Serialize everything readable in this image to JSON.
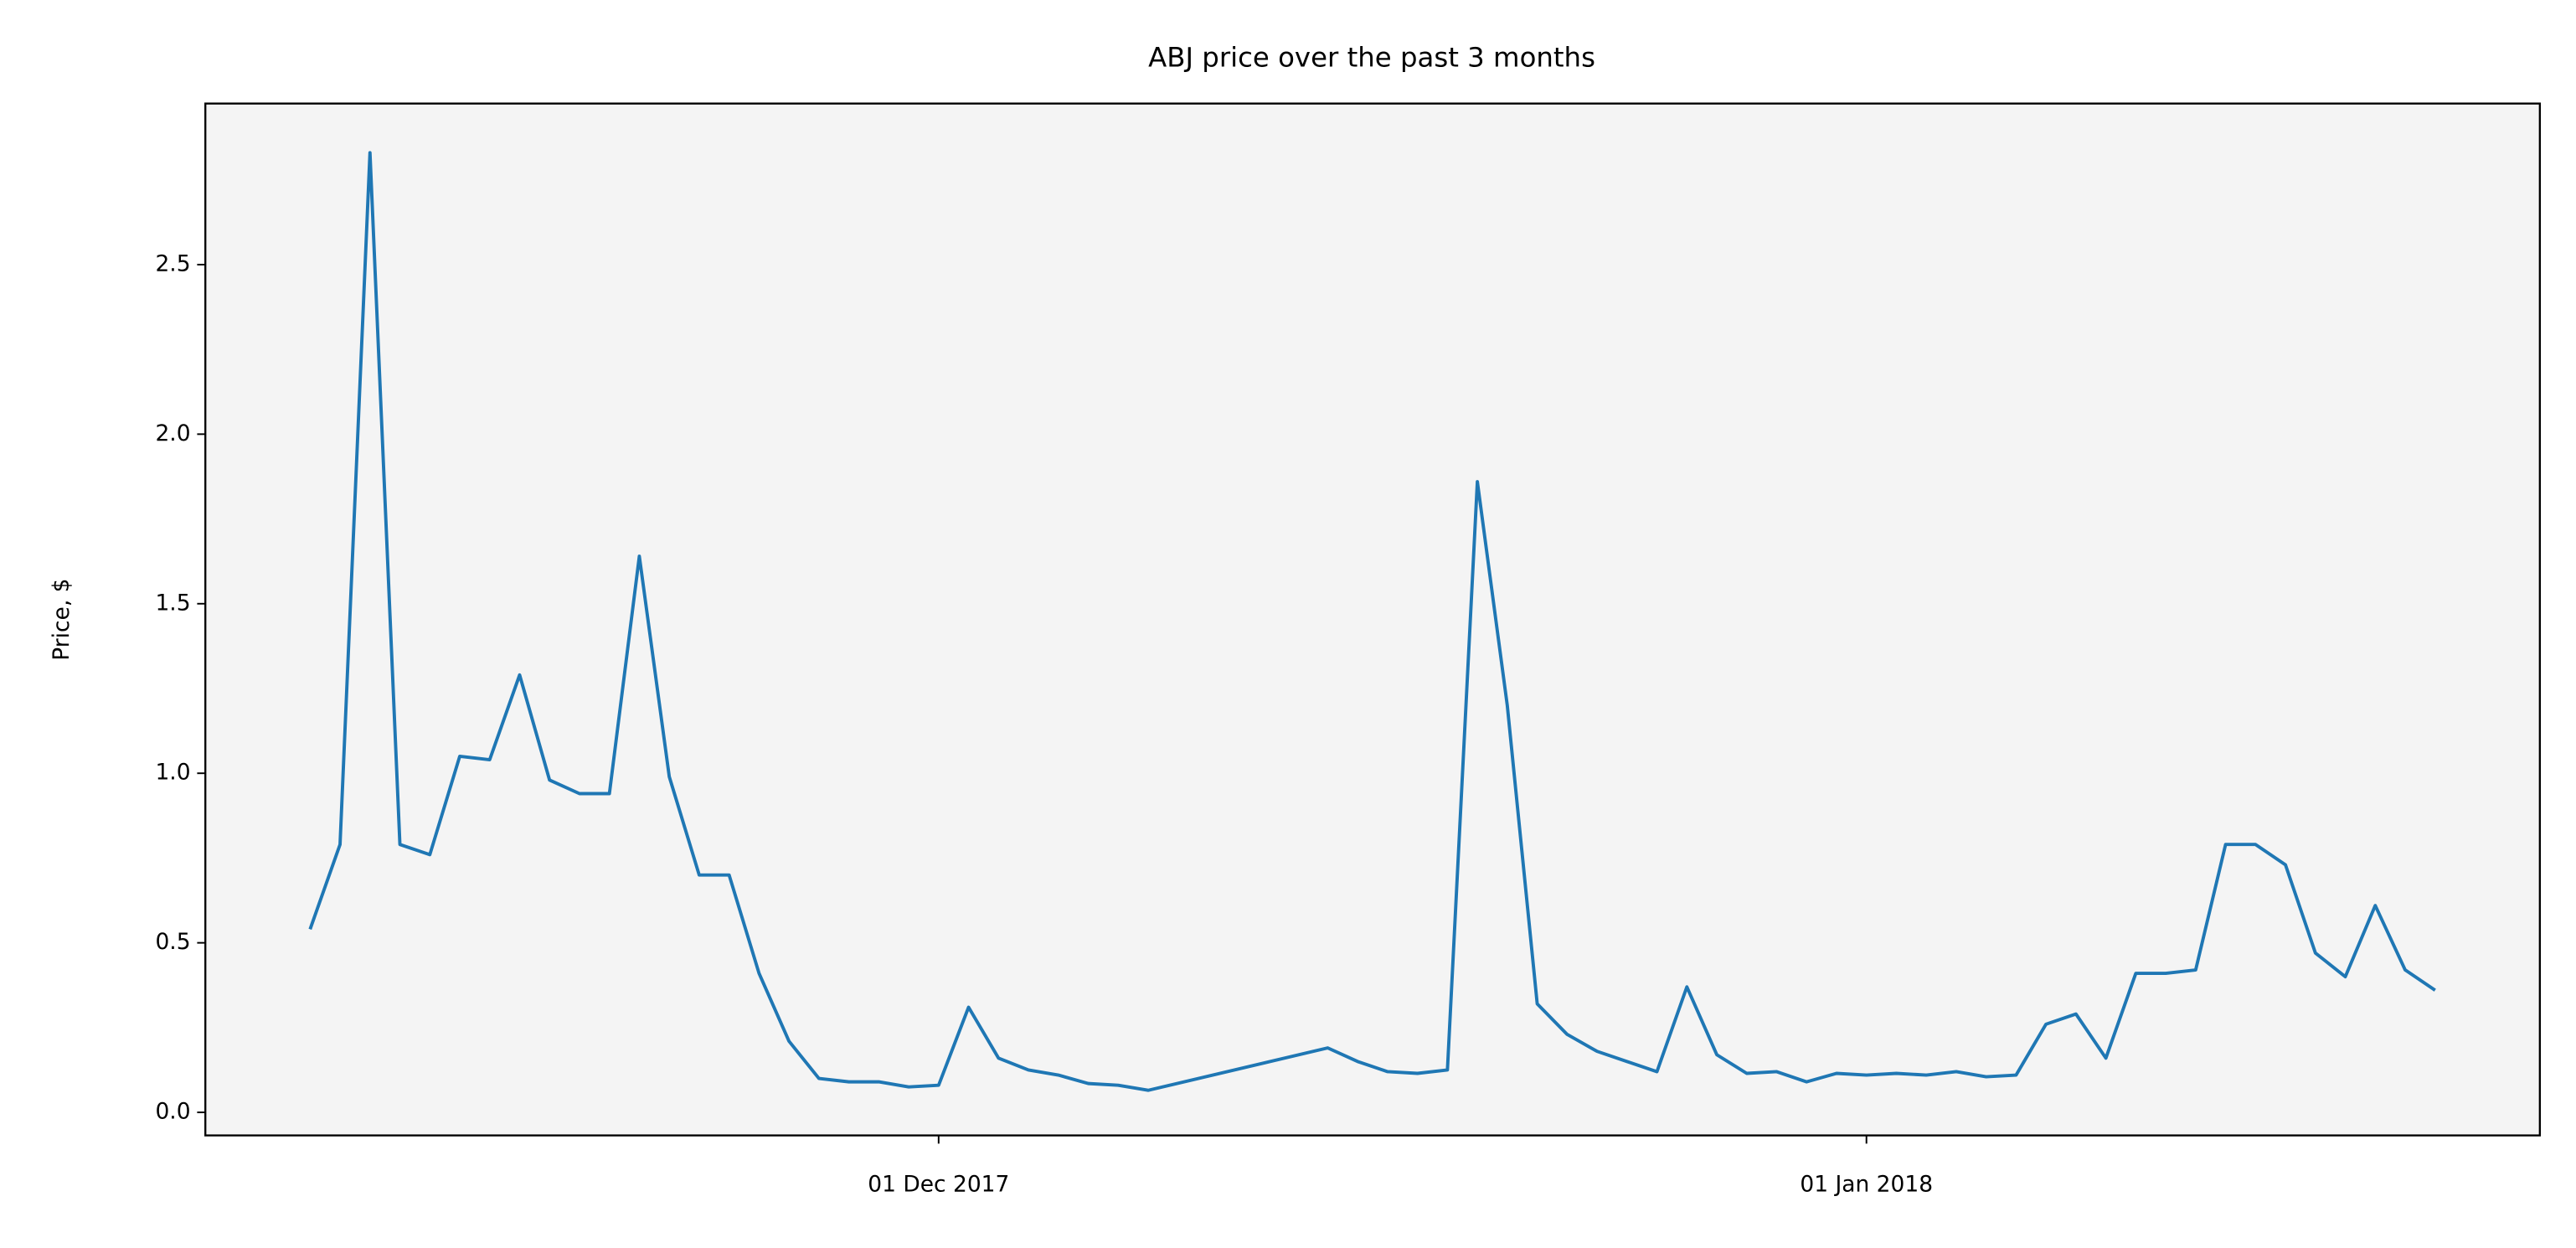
{
  "chart_data": {
    "type": "line",
    "title": "ABJ price over the past 3 months",
    "y_label": "Price, $",
    "x": [
      "2017-11-10",
      "2017-11-11",
      "2017-11-12",
      "2017-11-13",
      "2017-11-14",
      "2017-11-15",
      "2017-11-16",
      "2017-11-17",
      "2017-11-18",
      "2017-11-19",
      "2017-11-20",
      "2017-11-21",
      "2017-11-22",
      "2017-11-23",
      "2017-11-24",
      "2017-11-25",
      "2017-11-26",
      "2017-11-27",
      "2017-11-28",
      "2017-11-29",
      "2017-11-30",
      "2017-12-01",
      "2017-12-02",
      "2017-12-03",
      "2017-12-04",
      "2017-12-05",
      "2017-12-06",
      "2017-12-07",
      "2017-12-08",
      "2017-12-14",
      "2017-12-15",
      "2017-12-16",
      "2017-12-17",
      "2017-12-18",
      "2017-12-19",
      "2017-12-20",
      "2017-12-21",
      "2017-12-22",
      "2017-12-23",
      "2017-12-24",
      "2017-12-25",
      "2017-12-26",
      "2017-12-27",
      "2017-12-28",
      "2017-12-29",
      "2017-12-30",
      "2017-12-31",
      "2018-01-01",
      "2018-01-02",
      "2018-01-03",
      "2018-01-04",
      "2018-01-05",
      "2018-01-06",
      "2018-01-07",
      "2018-01-08",
      "2018-01-09",
      "2018-01-10",
      "2018-01-11",
      "2018-01-12",
      "2018-01-13",
      "2018-01-14",
      "2018-01-15",
      "2018-01-16",
      "2018-01-17",
      "2018-01-18",
      "2018-01-19",
      "2018-01-20"
    ],
    "series": [
      {
        "name": "ABJ",
        "color": "#1f77b4",
        "values": [
          0.54,
          0.79,
          2.83,
          0.79,
          0.76,
          1.05,
          1.04,
          1.29,
          0.98,
          0.94,
          0.94,
          1.64,
          0.99,
          0.7,
          0.7,
          0.41,
          0.21,
          0.1,
          0.09,
          0.09,
          0.075,
          0.08,
          0.31,
          0.16,
          0.125,
          0.11,
          0.085,
          0.08,
          0.065,
          0.19,
          0.15,
          0.12,
          0.115,
          0.125,
          1.86,
          1.2,
          0.32,
          0.23,
          0.18,
          0.15,
          0.12,
          0.37,
          0.17,
          0.115,
          0.12,
          0.09,
          0.115,
          0.11,
          0.115,
          0.11,
          0.12,
          0.105,
          0.11,
          0.26,
          0.29,
          0.16,
          0.41,
          0.41,
          0.42,
          0.79,
          0.79,
          0.73,
          0.47,
          0.4,
          0.61,
          0.42,
          0.36
        ]
      }
    ],
    "xlim": [
      "2017-11-06T12:00:00Z",
      "2018-01-23T12:00:00Z"
    ],
    "xticks": [
      {
        "value": "2017-12-01",
        "label": "01 Dec 2017"
      },
      {
        "value": "2018-01-01",
        "label": "01 Jan 2018"
      }
    ],
    "ylim": [
      -0.068,
      2.975
    ],
    "yticks": [
      {
        "value": 0,
        "label": "0.0"
      },
      0.5,
      {
        "value": 1,
        "label": "1.0"
      },
      1.5,
      {
        "value": 2,
        "label": "2.0"
      },
      2.5
    ],
    "background": "#f4f4f4"
  }
}
